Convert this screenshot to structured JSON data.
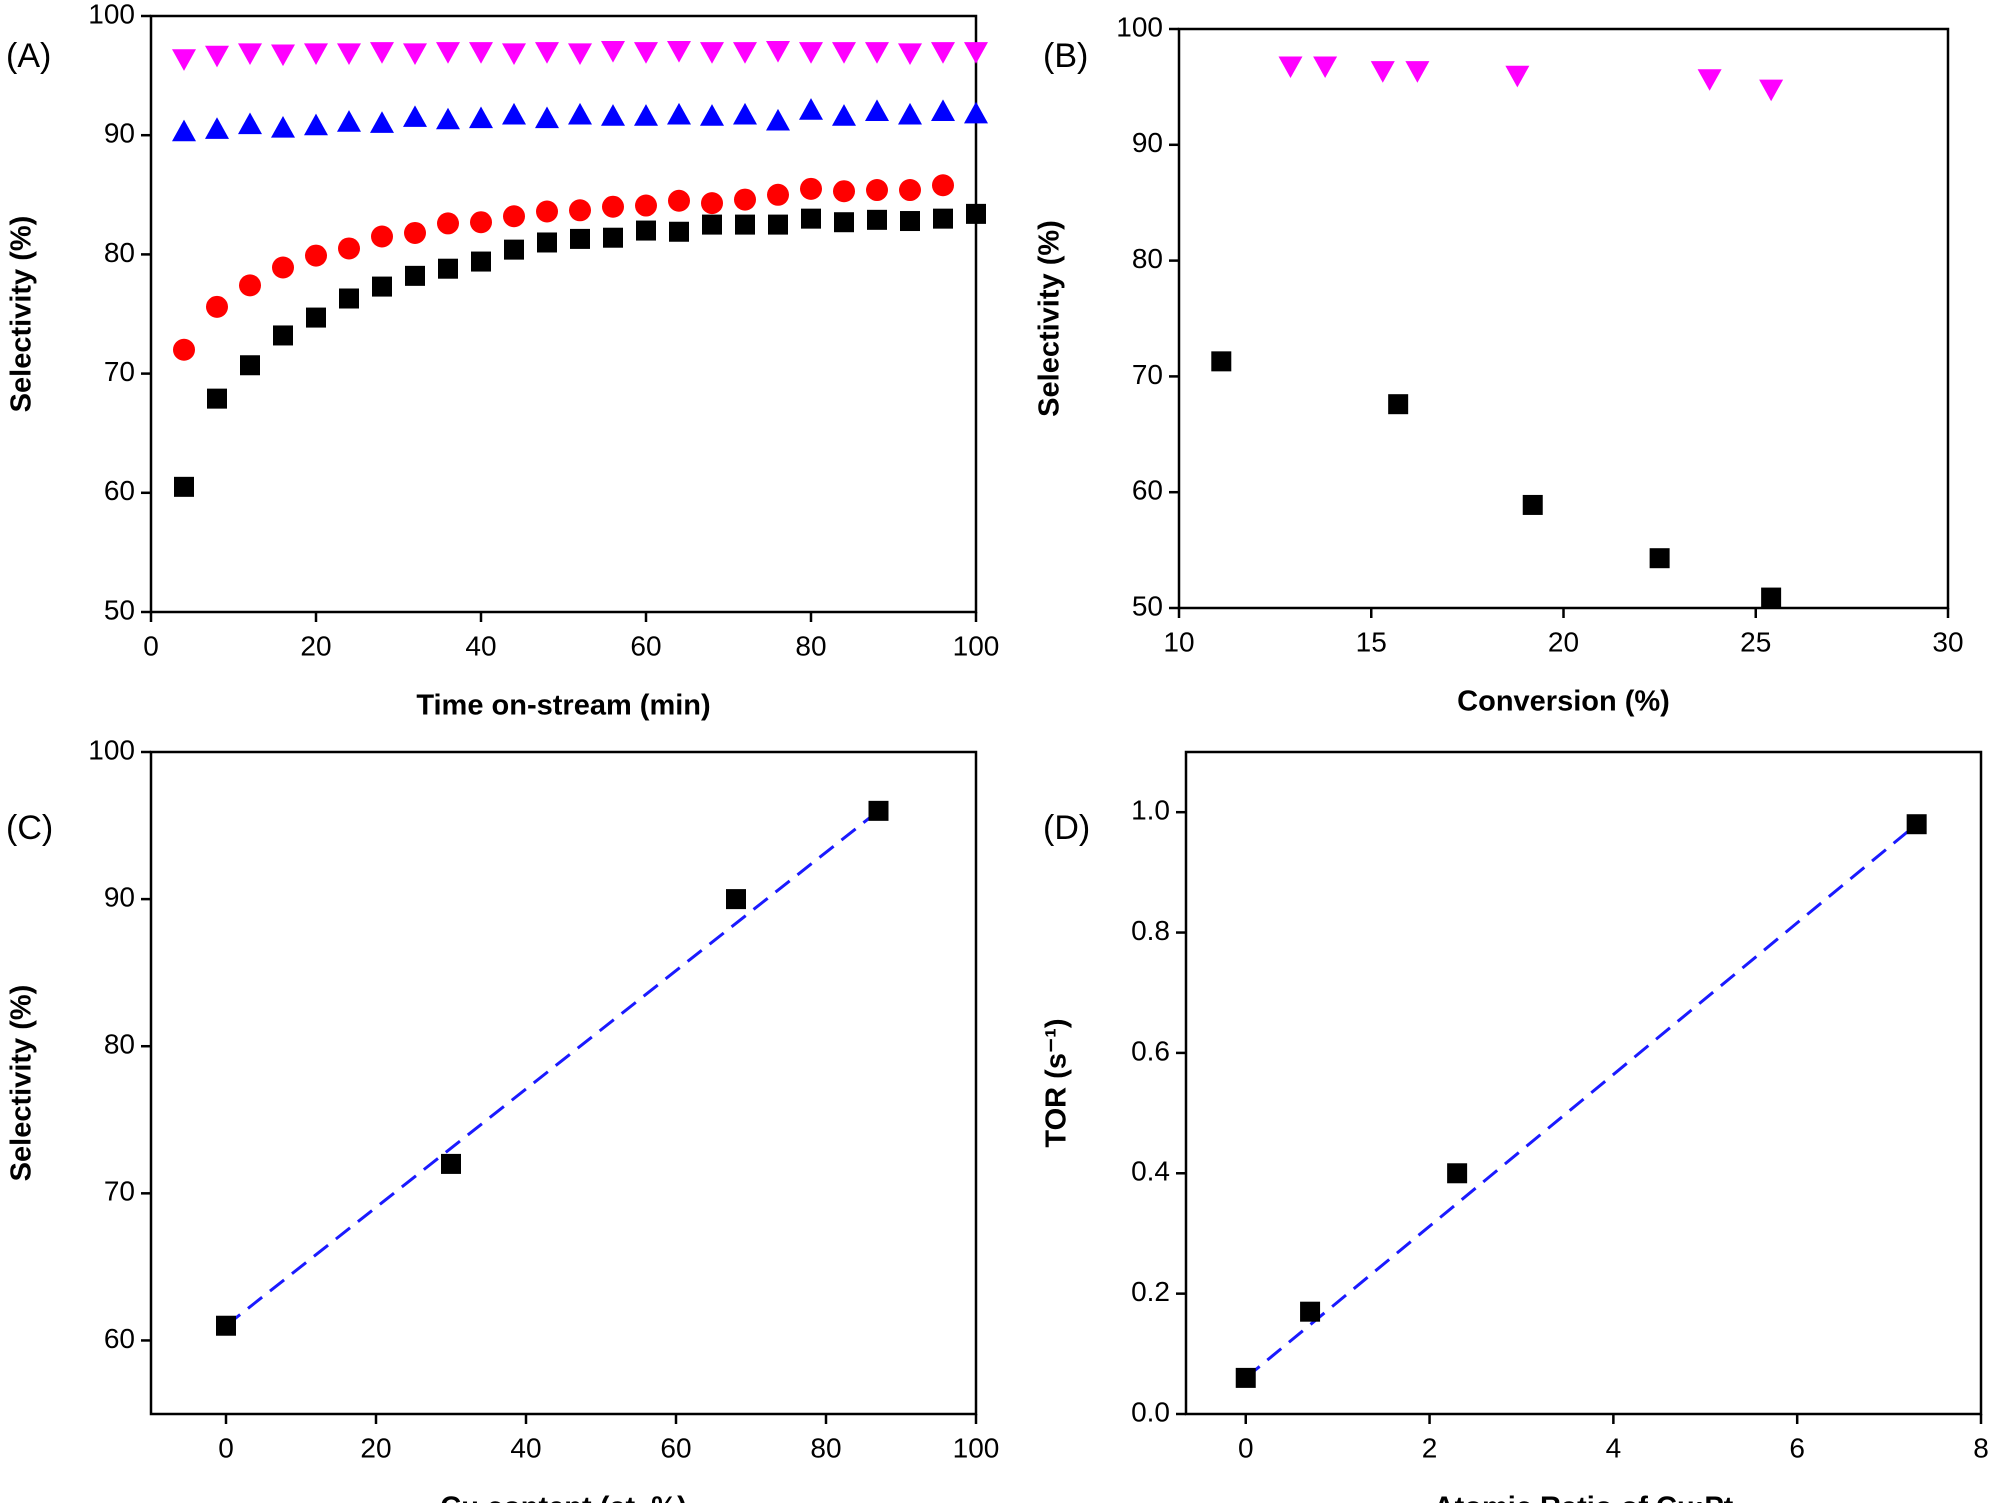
{
  "chart_data": [
    {
      "type": "scatter",
      "panel_label": "(A)",
      "xlabel": "Time on-stream (min)",
      "ylabel": "Selectivity (%)",
      "xlim": [
        0,
        100
      ],
      "ylim": [
        50,
        100
      ],
      "xticks": [
        0,
        20,
        40,
        60,
        80,
        100
      ],
      "yticks": [
        50,
        60,
        70,
        80,
        90,
        100
      ],
      "x": [
        4,
        8,
        12,
        16,
        20,
        24,
        28,
        32,
        36,
        40,
        44,
        48,
        52,
        56,
        60,
        64,
        68,
        72,
        76,
        80,
        84,
        88,
        92,
        96,
        100
      ],
      "series": [
        {
          "color": "#000000",
          "marker": "square",
          "values": [
            60.5,
            67.9,
            70.7,
            73.2,
            74.7,
            76.3,
            77.3,
            78.2,
            78.8,
            79.4,
            80.4,
            81.0,
            81.3,
            81.4,
            82.0,
            81.9,
            82.5,
            82.5,
            82.5,
            83.0,
            82.7,
            82.9,
            82.8,
            83.0,
            83.4
          ]
        },
        {
          "color": "#ff0000",
          "marker": "circle",
          "values": [
            72.0,
            75.6,
            77.4,
            78.9,
            79.9,
            80.5,
            81.5,
            81.8,
            82.6,
            82.7,
            83.2,
            83.6,
            83.7,
            84.0,
            84.1,
            84.5,
            84.3,
            84.6,
            85.0,
            85.5,
            85.3,
            85.4,
            85.4,
            85.8,
            null
          ]
        },
        {
          "color": "#0000ff",
          "marker": "triangle-up",
          "values": [
            90.3,
            90.5,
            90.9,
            90.6,
            90.8,
            91.1,
            91.0,
            91.5,
            91.3,
            91.4,
            91.7,
            91.4,
            91.7,
            91.6,
            91.6,
            91.7,
            91.6,
            91.7,
            91.2,
            92.1,
            91.6,
            92.0,
            91.7,
            92.0,
            91.8
          ]
        },
        {
          "color": "#ff00ff",
          "marker": "triangle-down",
          "values": [
            96.4,
            96.7,
            96.9,
            96.8,
            96.9,
            96.9,
            97.0,
            96.9,
            97.0,
            97.0,
            96.9,
            97.0,
            96.9,
            97.1,
            97.0,
            97.1,
            97.0,
            97.0,
            97.1,
            97.0,
            97.0,
            97.0,
            96.9,
            97.0,
            97.0
          ]
        }
      ]
    },
    {
      "type": "scatter",
      "panel_label": "(B)",
      "xlabel": "Conversion (%)",
      "ylabel": "Selectivity (%)",
      "xlim": [
        10,
        30
      ],
      "ylim": [
        50,
        100
      ],
      "xticks": [
        10,
        15,
        20,
        25,
        30
      ],
      "yticks": [
        50,
        60,
        70,
        80,
        90,
        100
      ],
      "series": [
        {
          "color": "#ff00ff",
          "marker": "triangle-down",
          "x": [
            12.9,
            13.8,
            15.3,
            16.2,
            18.8,
            23.8,
            25.4
          ],
          "values": [
            96.8,
            96.8,
            96.4,
            96.4,
            96.0,
            95.7,
            94.8
          ]
        },
        {
          "color": "#000000",
          "marker": "square",
          "x": [
            11.1,
            15.7,
            19.2,
            22.5,
            25.4
          ],
          "values": [
            71.3,
            67.6,
            58.9,
            54.3,
            50.9
          ]
        }
      ]
    },
    {
      "type": "scatter",
      "panel_label": "(C)",
      "xlabel": "Cu content (at. %)",
      "ylabel": "Selectivity (%)",
      "xlim": [
        -10,
        100
      ],
      "ylim": [
        55,
        100
      ],
      "xticks": [
        0,
        20,
        40,
        60,
        80,
        100
      ],
      "yticks": [
        60,
        70,
        80,
        90,
        100
      ],
      "series": [
        {
          "color": "#1a1aff",
          "marker": "none",
          "line_style": "dashed",
          "x": [
            0,
            87
          ],
          "values": [
            61,
            96
          ]
        },
        {
          "color": "#000000",
          "marker": "square",
          "x": [
            0,
            30,
            68,
            87
          ],
          "values": [
            61,
            72,
            90,
            96
          ]
        }
      ]
    },
    {
      "type": "scatter",
      "panel_label": "(D)",
      "xlabel": "Atomic Ratio of Cu:Pt",
      "ylabel": "TOR (s⁻¹)",
      "xlim": [
        -0.65,
        8
      ],
      "ylim": [
        0,
        1.1
      ],
      "xticks": [
        0,
        2,
        4,
        6,
        8
      ],
      "yticks": [
        {
          "value": 0,
          "label": "0.0"
        },
        0.2,
        0.4,
        0.6,
        0.8,
        {
          "value": 1,
          "label": "1.0"
        }
      ],
      "series": [
        {
          "color": "#1a1aff",
          "marker": "none",
          "line_style": "dashed",
          "x": [
            0,
            7.3
          ],
          "values": [
            0.06,
            0.98
          ]
        },
        {
          "color": "#000000",
          "marker": "square",
          "x": [
            0,
            0.7,
            2.3,
            7.3
          ],
          "values": [
            0.06,
            0.17,
            0.4,
            0.98
          ]
        }
      ]
    }
  ]
}
